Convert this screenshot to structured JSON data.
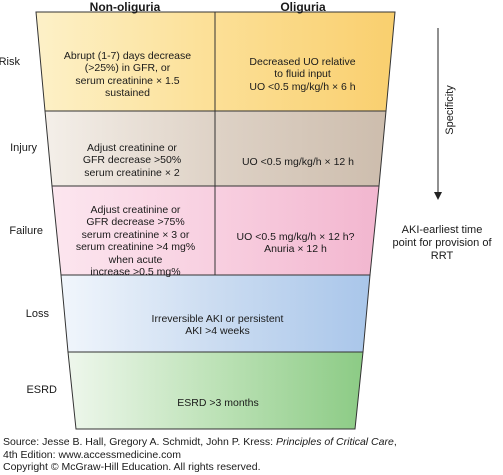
{
  "columns": {
    "left": "Non-oliguria",
    "right": "Oliguria"
  },
  "rows": [
    {
      "label": "Risk",
      "left": [
        "Abrupt (1-7) days decrease",
        "(>25%) in GFR, or",
        "serum creatinine × 1.5",
        "sustained"
      ],
      "right": [
        "Decreased UO relative",
        "to fluid input",
        "UO <0.5 mg/kg/h × 6 h"
      ],
      "color": "#fbd68a"
    },
    {
      "label": "Injury",
      "left": [
        "Adjust creatinine or",
        "GFR decrease >50%",
        "serum creatinine × 2"
      ],
      "right": [
        "UO <0.5 mg/kg/h × 12 h"
      ],
      "color": "#d8cbbf"
    },
    {
      "label": "Failure",
      "left": [
        "Adjust creatinine or",
        "GFR decrease >75%",
        "serum creatinine × 3 or",
        "serum creatinine >4 mg%",
        "when acute",
        "increase >0.5 mg%"
      ],
      "right": [
        "UO <0.5 mg/kg/h × 12 h?",
        "Anuria × 12 h"
      ],
      "color": "#f6c9dc"
    },
    {
      "label": "Loss",
      "center": [
        "Irreversible AKI or persistent",
        "AKI >4 weeks"
      ],
      "color": "#bdd3ee"
    },
    {
      "label": "ESRD",
      "center": [
        "ESRD >3 months"
      ],
      "color": "#a9d6a5"
    }
  ],
  "specificity_label": "Specificity",
  "side_note": [
    "AKI-earliest time",
    "point for provision of RRT"
  ],
  "source": {
    "prefix": "Source: Jesse B. Hall, Gregory A. Schmidt, John P. Kress: ",
    "title": "Principles of Critical Care",
    "suffix": ",",
    "line2": "4th Edition: www.accessmedicine.com",
    "line3": "Copyright © McGraw-Hill Education. All rights reserved."
  }
}
